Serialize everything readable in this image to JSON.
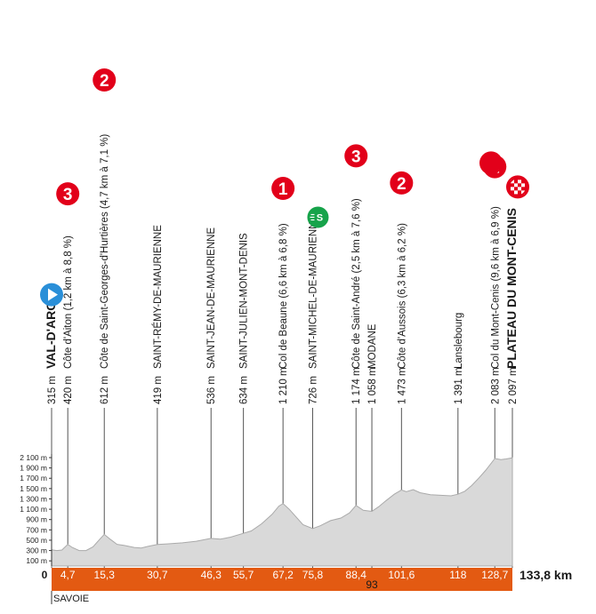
{
  "colors": {
    "kom": "#e2001a",
    "sprint": "#16a34a",
    "start": "#2a8fd8",
    "bar": "#e35a12",
    "profile_fill": "#d9d9d9",
    "profile_line": "#aaaaaa"
  },
  "total_distance_label": "133,8 km",
  "region": "SAVOIE",
  "elevation_scale": [
    "2 100 m",
    "1 900 m",
    "1 700 m",
    "1 500 m",
    "1 300 m",
    "1 100 m",
    "900 m",
    "700 m",
    "500 m",
    "300 m",
    "100 m"
  ],
  "points": [
    {
      "km": 0,
      "km_label": "0",
      "label": "VAL-D'ARC",
      "alt": "315 m",
      "bold": true,
      "icon": "start"
    },
    {
      "km": 4.7,
      "km_label": "4,7",
      "label": "Côte d'Aiton (1,2 km à 8,8 %)",
      "alt": "420 m",
      "badge": "3"
    },
    {
      "km": 15.3,
      "km_label": "15,3",
      "label": "Côte de Saint-Georges-d'Hurtières (4,7 km à 7,1 %)",
      "alt": "612 m",
      "badge": "2"
    },
    {
      "km": 30.7,
      "km_label": "30,7",
      "label": "SAINT-RÉMY-DE-MAURIENNE",
      "alt": "419 m"
    },
    {
      "km": 46.3,
      "km_label": "46,3",
      "label": "SAINT-JEAN-DE-MAURIENNE",
      "alt": "536 m"
    },
    {
      "km": 55.7,
      "km_label": "55,7",
      "label": "SAINT-JULIEN-MONT-DENIS",
      "alt": "634 m"
    },
    {
      "km": 67.2,
      "km_label": "67,2",
      "label": "Col de Beaune (6,6 km à 6,8 %)",
      "alt": "1 210 m",
      "badge": "1"
    },
    {
      "km": 75.8,
      "km_label": "75,8",
      "label": "SAINT-MICHEL-DE-MAURIENNE",
      "alt": "726 m",
      "icon": "sprint",
      "icon_text": "S"
    },
    {
      "km": 88.4,
      "km_label": "88,4",
      "label": "Côte de Saint-André (2,5 km à 7,6 %)",
      "alt": "1 174 m",
      "badge": "3"
    },
    {
      "km": 93,
      "km_label": "93",
      "label": "MODANE",
      "alt": "1 058 m",
      "km_below": true
    },
    {
      "km": 101.6,
      "km_label": "101,6",
      "label": "Côte d'Aussois (6,3 km à 6,2 %)",
      "alt": "1 473 m",
      "badge": "2"
    },
    {
      "km": 118,
      "km_label": "118",
      "label": "Lanslebourg",
      "alt": "1 391 m"
    },
    {
      "km": 128.7,
      "km_label": "128,7",
      "label": "Col du Mont-Cenis (9,6 km à 6,9 %)",
      "alt": "2 083 m",
      "badge": "1"
    },
    {
      "km": 133.8,
      "km_label": "",
      "label": "PLATEAU DU MONT-CENIS",
      "alt": "2 097 m",
      "bold": true,
      "icon": "finish"
    }
  ],
  "profile": [
    [
      0,
      315
    ],
    [
      1.5,
      300
    ],
    [
      3,
      310
    ],
    [
      4.7,
      420
    ],
    [
      6,
      360
    ],
    [
      8,
      300
    ],
    [
      10,
      300
    ],
    [
      12,
      370
    ],
    [
      14,
      520
    ],
    [
      15.3,
      612
    ],
    [
      17,
      520
    ],
    [
      19,
      420
    ],
    [
      21,
      400
    ],
    [
      24,
      360
    ],
    [
      26,
      350
    ],
    [
      28,
      380
    ],
    [
      30.7,
      419
    ],
    [
      34,
      430
    ],
    [
      38,
      450
    ],
    [
      42,
      480
    ],
    [
      46.3,
      536
    ],
    [
      49,
      520
    ],
    [
      52,
      560
    ],
    [
      55.7,
      634
    ],
    [
      58,
      680
    ],
    [
      61,
      820
    ],
    [
      64,
      1000
    ],
    [
      66,
      1160
    ],
    [
      67.2,
      1210
    ],
    [
      69,
      1100
    ],
    [
      71,
      950
    ],
    [
      73,
      800
    ],
    [
      75.8,
      726
    ],
    [
      78,
      780
    ],
    [
      81,
      880
    ],
    [
      84,
      930
    ],
    [
      86.5,
      1030
    ],
    [
      88.4,
      1174
    ],
    [
      90.5,
      1080
    ],
    [
      93,
      1058
    ],
    [
      95,
      1150
    ],
    [
      97,
      1260
    ],
    [
      99.5,
      1390
    ],
    [
      101.6,
      1473
    ],
    [
      103,
      1440
    ],
    [
      105,
      1480
    ],
    [
      107,
      1420
    ],
    [
      110,
      1380
    ],
    [
      113,
      1370
    ],
    [
      116,
      1360
    ],
    [
      118,
      1391
    ],
    [
      120,
      1450
    ],
    [
      122,
      1560
    ],
    [
      124,
      1700
    ],
    [
      126,
      1850
    ],
    [
      128.7,
      2083
    ],
    [
      130.5,
      2060
    ],
    [
      132,
      2075
    ],
    [
      133.8,
      2097
    ]
  ]
}
